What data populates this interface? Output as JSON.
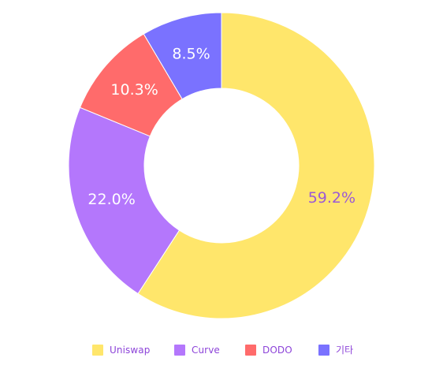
{
  "chart_data": {
    "type": "pie",
    "categories": [
      "Uniswap",
      "Curve",
      "DODO",
      "기타"
    ],
    "values": [
      59.2,
      22.0,
      10.3,
      8.5
    ],
    "labels": [
      "59.2%",
      "22.0%",
      "10.3%",
      "8.5%"
    ],
    "colors": [
      "#ffe66b",
      "#b477fc",
      "#ff6b6b",
      "#7a72ff"
    ],
    "label_colors": [
      "#9b59d6",
      "#ffffff",
      "#ffffff",
      "#ffffff"
    ],
    "legend_text_color": "#8d44d9",
    "donut": true,
    "legend_position": "bottom",
    "title": ""
  }
}
